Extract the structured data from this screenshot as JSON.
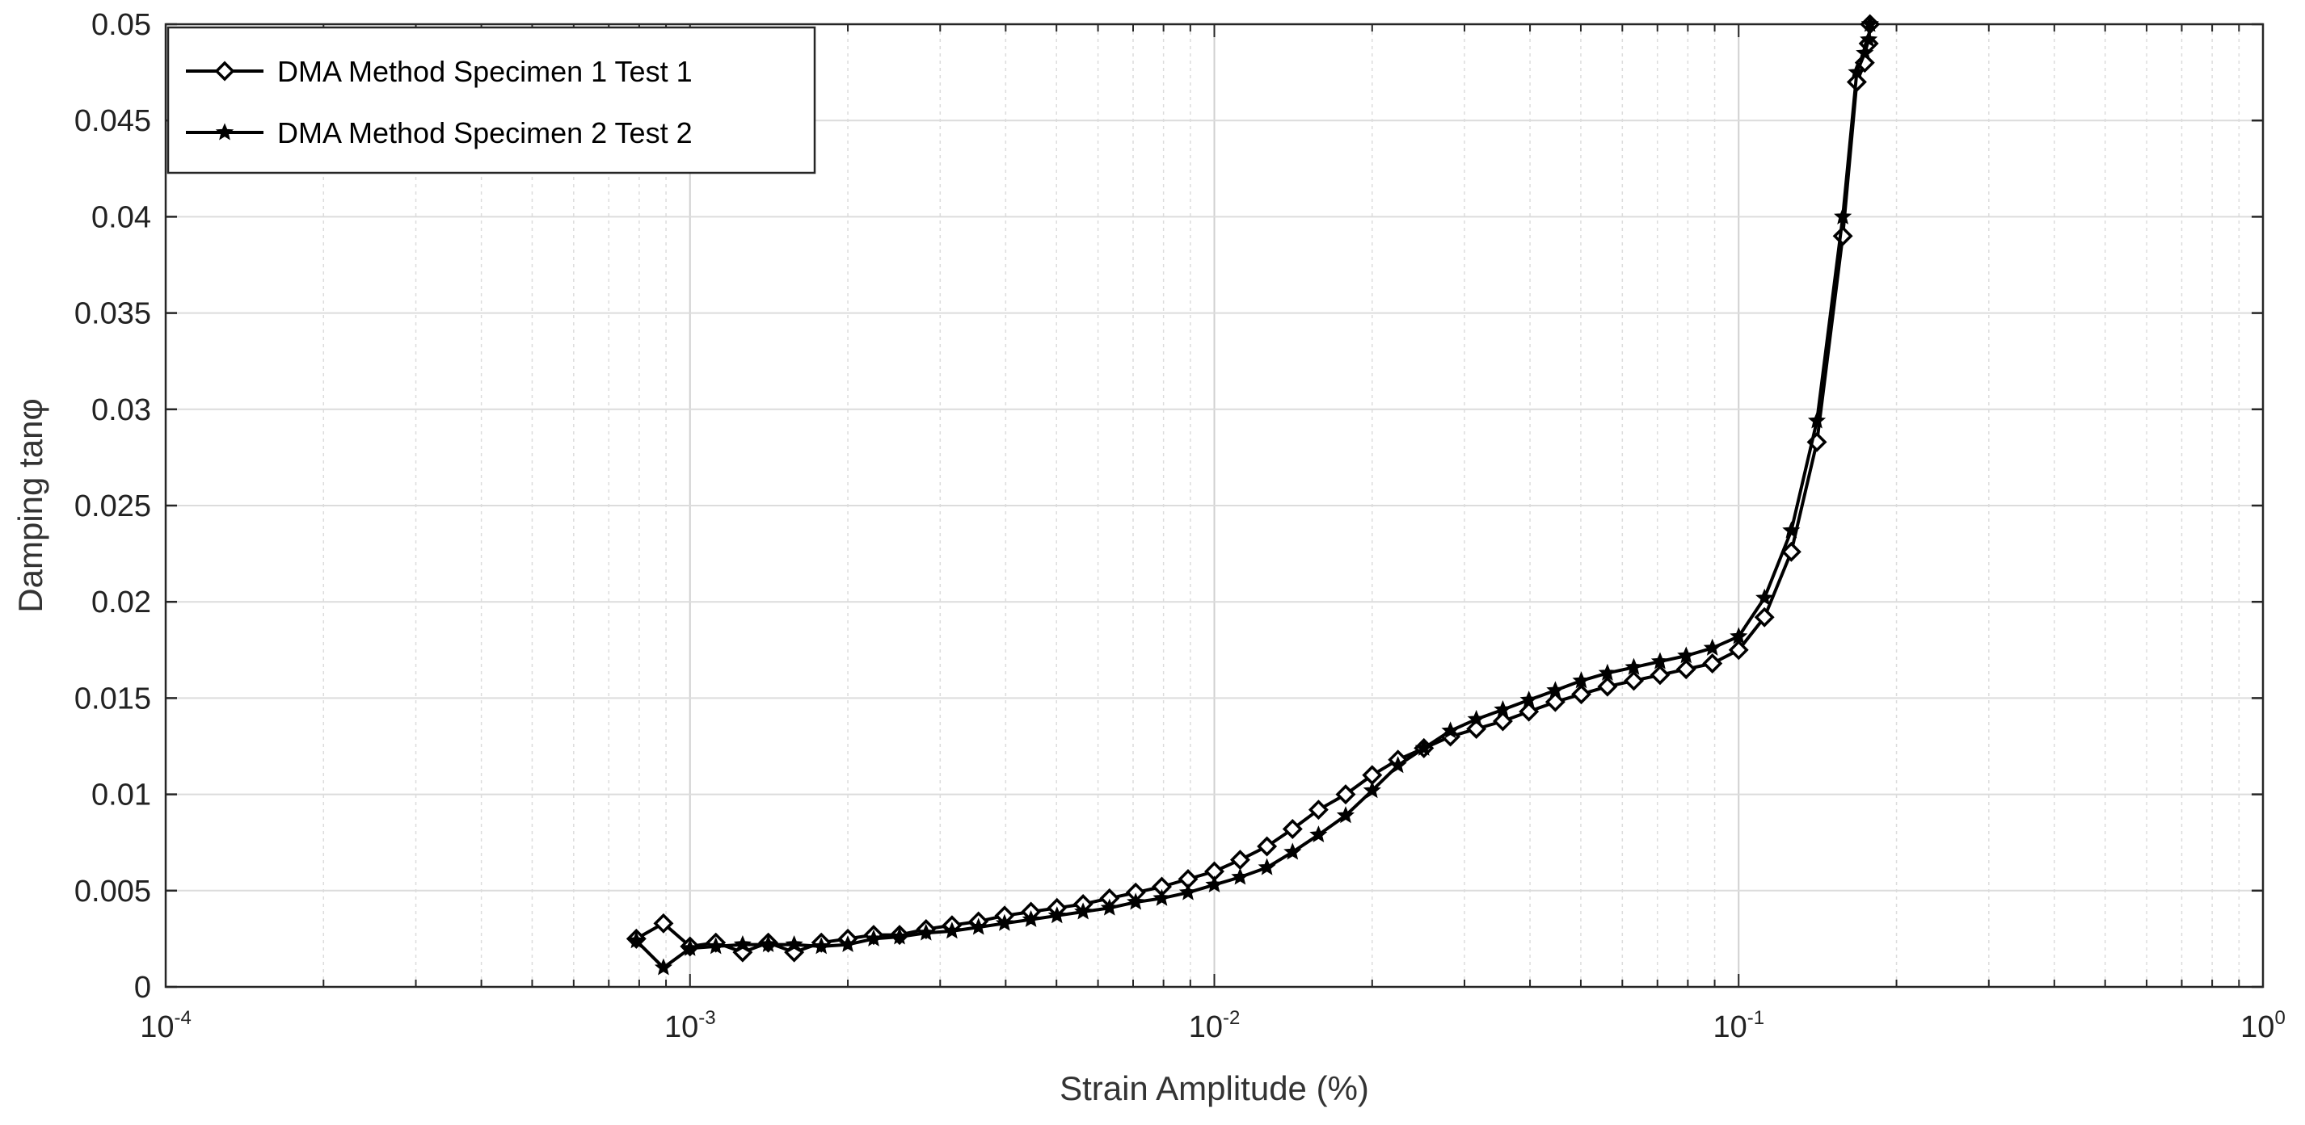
{
  "chart_data": {
    "type": "line",
    "title": "",
    "xlabel": "Strain Amplitude (%)",
    "ylabel": "Damping tanφ",
    "x_scale": "log",
    "xlim": [
      0.0001,
      1
    ],
    "ylim": [
      0,
      0.05
    ],
    "x_ticks": [
      {
        "base": "10",
        "exp": "-4"
      },
      {
        "base": "10",
        "exp": "-3"
      },
      {
        "base": "10",
        "exp": "-2"
      },
      {
        "base": "10",
        "exp": "-1"
      },
      {
        "base": "10",
        "exp": "0"
      }
    ],
    "y_ticks": [
      "0",
      "0.005",
      "0.01",
      "0.015",
      "0.02",
      "0.025",
      "0.03",
      "0.035",
      "0.04",
      "0.045",
      "0.05"
    ],
    "grid": true,
    "legend_position": "top-left",
    "colors": {
      "series": "#000000",
      "grid": "#dcdcdc",
      "axis": "#262626"
    },
    "series": [
      {
        "name": "DMA Method Specimen 1 Test 1",
        "marker": "diamond",
        "x": [
          0.00079,
          0.00089,
          0.001,
          0.00112,
          0.00126,
          0.00141,
          0.00158,
          0.00178,
          0.002,
          0.00224,
          0.00251,
          0.00282,
          0.00316,
          0.00355,
          0.00398,
          0.00447,
          0.00501,
          0.00562,
          0.00631,
          0.00708,
          0.00794,
          0.00891,
          0.01,
          0.0112,
          0.0126,
          0.0141,
          0.0158,
          0.0178,
          0.02,
          0.0224,
          0.0251,
          0.0282,
          0.0316,
          0.0355,
          0.0398,
          0.0447,
          0.0501,
          0.0562,
          0.0631,
          0.0708,
          0.0794,
          0.0891,
          0.1,
          0.112,
          0.126,
          0.141,
          0.158,
          0.168,
          0.174,
          0.177,
          0.178
        ],
        "y": [
          0.0025,
          0.0033,
          0.0021,
          0.0023,
          0.0018,
          0.0023,
          0.0018,
          0.0023,
          0.0025,
          0.0027,
          0.0027,
          0.003,
          0.0032,
          0.0034,
          0.0037,
          0.0039,
          0.0041,
          0.0043,
          0.0046,
          0.0049,
          0.0052,
          0.0056,
          0.006,
          0.0066,
          0.0073,
          0.0082,
          0.0092,
          0.01,
          0.011,
          0.0118,
          0.0124,
          0.013,
          0.0134,
          0.0138,
          0.0143,
          0.0148,
          0.0152,
          0.0156,
          0.0159,
          0.0162,
          0.0165,
          0.0168,
          0.0175,
          0.0192,
          0.0226,
          0.0283,
          0.039,
          0.047,
          0.048,
          0.049,
          0.05
        ]
      },
      {
        "name": "DMA Method Specimen 2 Test 2",
        "marker": "star",
        "x": [
          0.00079,
          0.00089,
          0.001,
          0.00112,
          0.00126,
          0.00141,
          0.00158,
          0.00178,
          0.002,
          0.00224,
          0.00251,
          0.00282,
          0.00316,
          0.00355,
          0.00398,
          0.00447,
          0.00501,
          0.00562,
          0.00631,
          0.00708,
          0.00794,
          0.00891,
          0.01,
          0.0112,
          0.0126,
          0.0141,
          0.0158,
          0.0178,
          0.02,
          0.0224,
          0.0251,
          0.0282,
          0.0316,
          0.0355,
          0.0398,
          0.0447,
          0.0501,
          0.0562,
          0.0631,
          0.0708,
          0.0794,
          0.0891,
          0.1,
          0.112,
          0.126,
          0.141,
          0.158,
          0.168,
          0.174,
          0.177,
          0.178
        ],
        "y": [
          0.0024,
          0.001,
          0.002,
          0.0021,
          0.0022,
          0.0022,
          0.0022,
          0.0021,
          0.0022,
          0.0025,
          0.0026,
          0.0028,
          0.0029,
          0.0031,
          0.0033,
          0.0035,
          0.0037,
          0.0039,
          0.0041,
          0.0044,
          0.0046,
          0.0049,
          0.0053,
          0.0057,
          0.0062,
          0.007,
          0.0079,
          0.0089,
          0.0102,
          0.0115,
          0.0124,
          0.0133,
          0.0139,
          0.0144,
          0.0149,
          0.0154,
          0.0159,
          0.0163,
          0.0166,
          0.0169,
          0.0172,
          0.0176,
          0.0182,
          0.0202,
          0.0237,
          0.0294,
          0.04,
          0.0475,
          0.0485,
          0.0492,
          0.05
        ]
      }
    ]
  }
}
